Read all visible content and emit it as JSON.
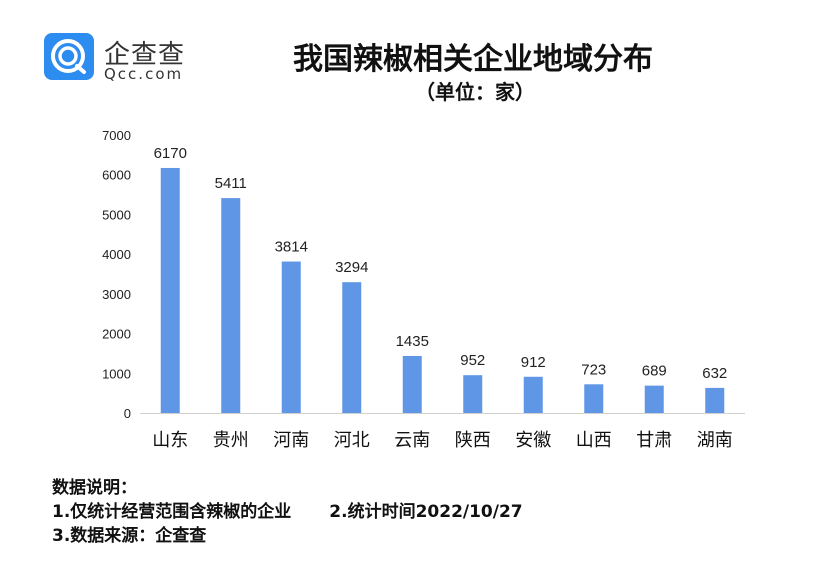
{
  "logo": {
    "cn": "企查查",
    "en": "Qcc.com"
  },
  "chart_data": {
    "type": "bar",
    "title": "我国辣椒相关企业地域分布",
    "subtitle": "（单位：家）",
    "categories": [
      "山东",
      "贵州",
      "河南",
      "河北",
      "云南",
      "陕西",
      "安徽",
      "山西",
      "甘肃",
      "湖南"
    ],
    "values": [
      6170,
      5411,
      3814,
      3294,
      1435,
      952,
      912,
      723,
      689,
      632
    ],
    "ylim": [
      0,
      7000
    ],
    "yticks": [
      0,
      1000,
      2000,
      3000,
      4000,
      5000,
      6000,
      7000
    ],
    "grid": false,
    "bar_color": "#6096e6"
  },
  "notes": {
    "heading": "数据说明：",
    "line1": "1.仅统计经营范围含辣椒的企业",
    "line2": "2.统计时间2022/10/27",
    "line3": "3.数据来源：企查查"
  }
}
